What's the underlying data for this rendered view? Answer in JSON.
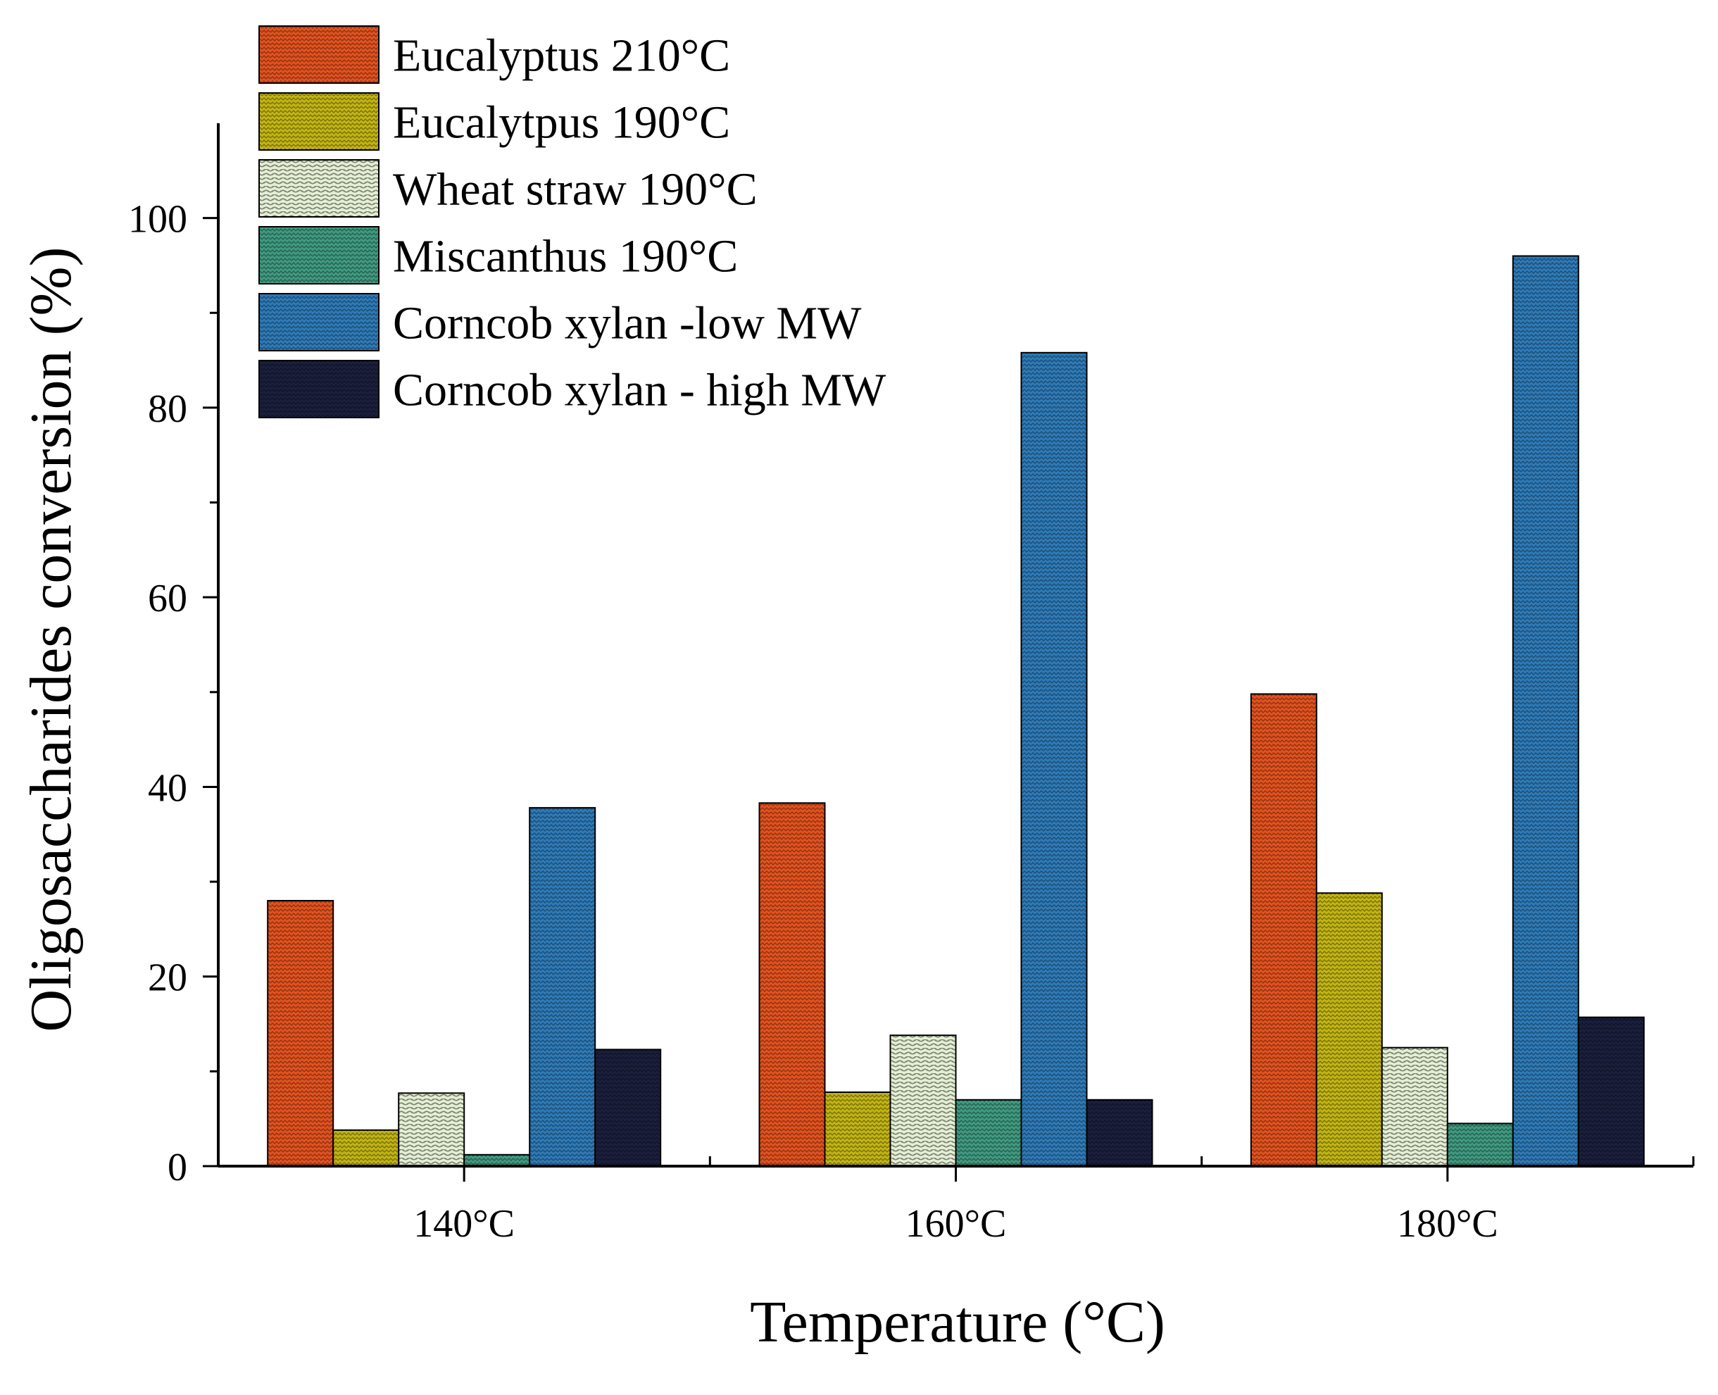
{
  "chart_data": {
    "type": "bar",
    "title": "",
    "xlabel": "Temperature (°C)",
    "ylabel": "Oligosaccharides conversion (%)",
    "categories": [
      "140°C",
      "160°C",
      "180°C"
    ],
    "ylim": [
      0,
      110
    ],
    "yticks": [
      0,
      20,
      40,
      60,
      80,
      100
    ],
    "legend_position": "top-left",
    "grid": false,
    "series": [
      {
        "name": "Eucalyptus 210°C",
        "color": "#e2521f",
        "pattern": "zigzag",
        "values": [
          28,
          38.3,
          49.8
        ]
      },
      {
        "name": "Eucalytpus 190°C",
        "color": "#c2b413",
        "pattern": "zigzag",
        "values": [
          3.8,
          7.8,
          28.8
        ]
      },
      {
        "name": "Wheat straw 190°C",
        "color": "#e4efd3",
        "pattern": "weave",
        "values": [
          7.7,
          13.8,
          12.5
        ]
      },
      {
        "name": "Miscanthus 190°C",
        "color": "#3f9a80",
        "pattern": "zigzag",
        "values": [
          1.2,
          7,
          4.5
        ]
      },
      {
        "name": "Corncob xylan -low MW",
        "color": "#2e7ab7",
        "pattern": "zigzag",
        "values": [
          37.8,
          85.8,
          96
        ]
      },
      {
        "name": "Corncob xylan - high MW",
        "color": "#1b1f3d",
        "pattern": "zigzag",
        "values": [
          12.3,
          7,
          15.7
        ]
      }
    ]
  }
}
